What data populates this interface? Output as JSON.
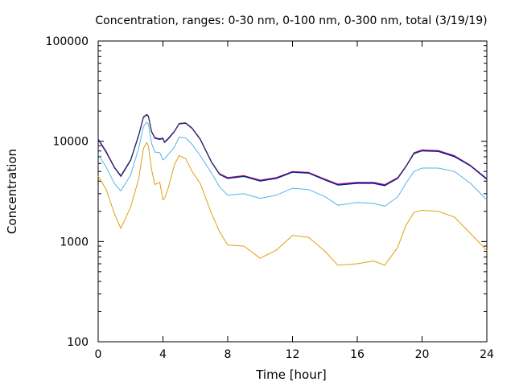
{
  "chart_data": {
    "type": "line",
    "title": "Concentration, ranges: 0-30 nm, 0-100 nm, 0-300 nm, total (3/19/19)",
    "xlabel": "Time [hour]",
    "ylabel": "Concentration",
    "xlim": [
      0,
      24
    ],
    "ylim": [
      100,
      100000
    ],
    "yscale": "log",
    "x_ticks": [
      0,
      4,
      8,
      12,
      16,
      20,
      24
    ],
    "x_tick_labels": [
      "0",
      "4",
      "8",
      "12",
      "16",
      "20",
      "24"
    ],
    "y_ticks": [
      100,
      1000,
      10000,
      100000
    ],
    "y_tick_labels": [
      "100",
      "1000",
      "10000",
      "100000"
    ],
    "grid": false,
    "legend": "none",
    "x": [
      0,
      0.5,
      1.0,
      1.4,
      2.0,
      2.5,
      2.8,
      3.0,
      3.1,
      3.3,
      3.5,
      3.8,
      4.0,
      4.1,
      4.3,
      4.7,
      5.0,
      5.4,
      5.8,
      6.3,
      7.0,
      7.5,
      8.0,
      9.0,
      10.0,
      11.0,
      12.0,
      13.0,
      14.0,
      14.8,
      16.0,
      17.0,
      17.7,
      18.5,
      19.0,
      19.5,
      20.0,
      21.0,
      22.0,
      23.0,
      24.0
    ],
    "series": [
      {
        "color": "#e0a010",
        "values": [
          4500,
          3300,
          1900,
          1350,
          2200,
          4200,
          8500,
          9700,
          9000,
          5200,
          3700,
          3900,
          2600,
          2700,
          3300,
          5800,
          7200,
          6700,
          5000,
          3800,
          1900,
          1250,
          920,
          900,
          680,
          820,
          1150,
          1100,
          800,
          580,
          600,
          640,
          580,
          880,
          1450,
          1950,
          2050,
          2000,
          1750,
          1200,
          810
        ]
      },
      {
        "color": "#56b4e9",
        "values": [
          7400,
          5500,
          3800,
          3200,
          4600,
          8500,
          14000,
          15500,
          14800,
          9500,
          7800,
          7700,
          6500,
          6700,
          7300,
          8700,
          11000,
          10800,
          9300,
          7200,
          4800,
          3500,
          2900,
          3000,
          2700,
          2900,
          3400,
          3300,
          2800,
          2300,
          2450,
          2400,
          2250,
          2800,
          3800,
          5000,
          5400,
          5400,
          5000,
          3800,
          2600
        ]
      },
      {
        "color": "#009e73",
        "values": [
          10500,
          7800,
          5500,
          4500,
          6500,
          11500,
          17500,
          18500,
          17800,
          12500,
          10800,
          10500,
          10700,
          9800,
          10500,
          12500,
          15000,
          15200,
          13500,
          10500,
          6200,
          4700,
          4300,
          4500,
          4050,
          4300,
          4950,
          4850,
          4150,
          3700,
          3850,
          3850,
          3650,
          4300,
          5600,
          7600,
          8100,
          8000,
          7100,
          5700,
          4200
        ]
      },
      {
        "color": "#0000cc",
        "values": [
          10400,
          7700,
          5450,
          4450,
          6400,
          11300,
          17300,
          18300,
          17600,
          12400,
          10700,
          10400,
          10600,
          9700,
          10400,
          12400,
          14900,
          15100,
          13400,
          10400,
          6150,
          4650,
          4250,
          4450,
          4000,
          4250,
          4900,
          4800,
          4100,
          3650,
          3800,
          3800,
          3600,
          4250,
          5550,
          7500,
          8000,
          7900,
          7000,
          5650,
          4150
        ]
      },
      {
        "color": "#e000a0",
        "values": [
          10600,
          7900,
          5550,
          4550,
          6550,
          11600,
          17600,
          18600,
          17900,
          12600,
          10900,
          10600,
          10800,
          9900,
          10600,
          12600,
          15100,
          15300,
          13600,
          10600,
          6250,
          4750,
          4350,
          4550,
          4100,
          4350,
          5000,
          4900,
          4200,
          3750,
          3900,
          3900,
          3700,
          4350,
          5650,
          7700,
          8200,
          8100,
          7200,
          5750,
          4250
        ]
      },
      {
        "color": "#1a3a4a",
        "values": [
          10500,
          7800,
          5500,
          4500,
          6500,
          11500,
          17500,
          18500,
          17800,
          12500,
          10800,
          10500,
          10700,
          9800,
          10500,
          12500,
          15000,
          15200,
          13500,
          10500,
          6200,
          4700,
          4300,
          4500,
          4050,
          4300,
          4950,
          4850,
          4150,
          3700,
          3850,
          3850,
          3650,
          4300,
          5600,
          7600,
          8100,
          8000,
          7100,
          5700,
          4200
        ]
      }
    ]
  }
}
